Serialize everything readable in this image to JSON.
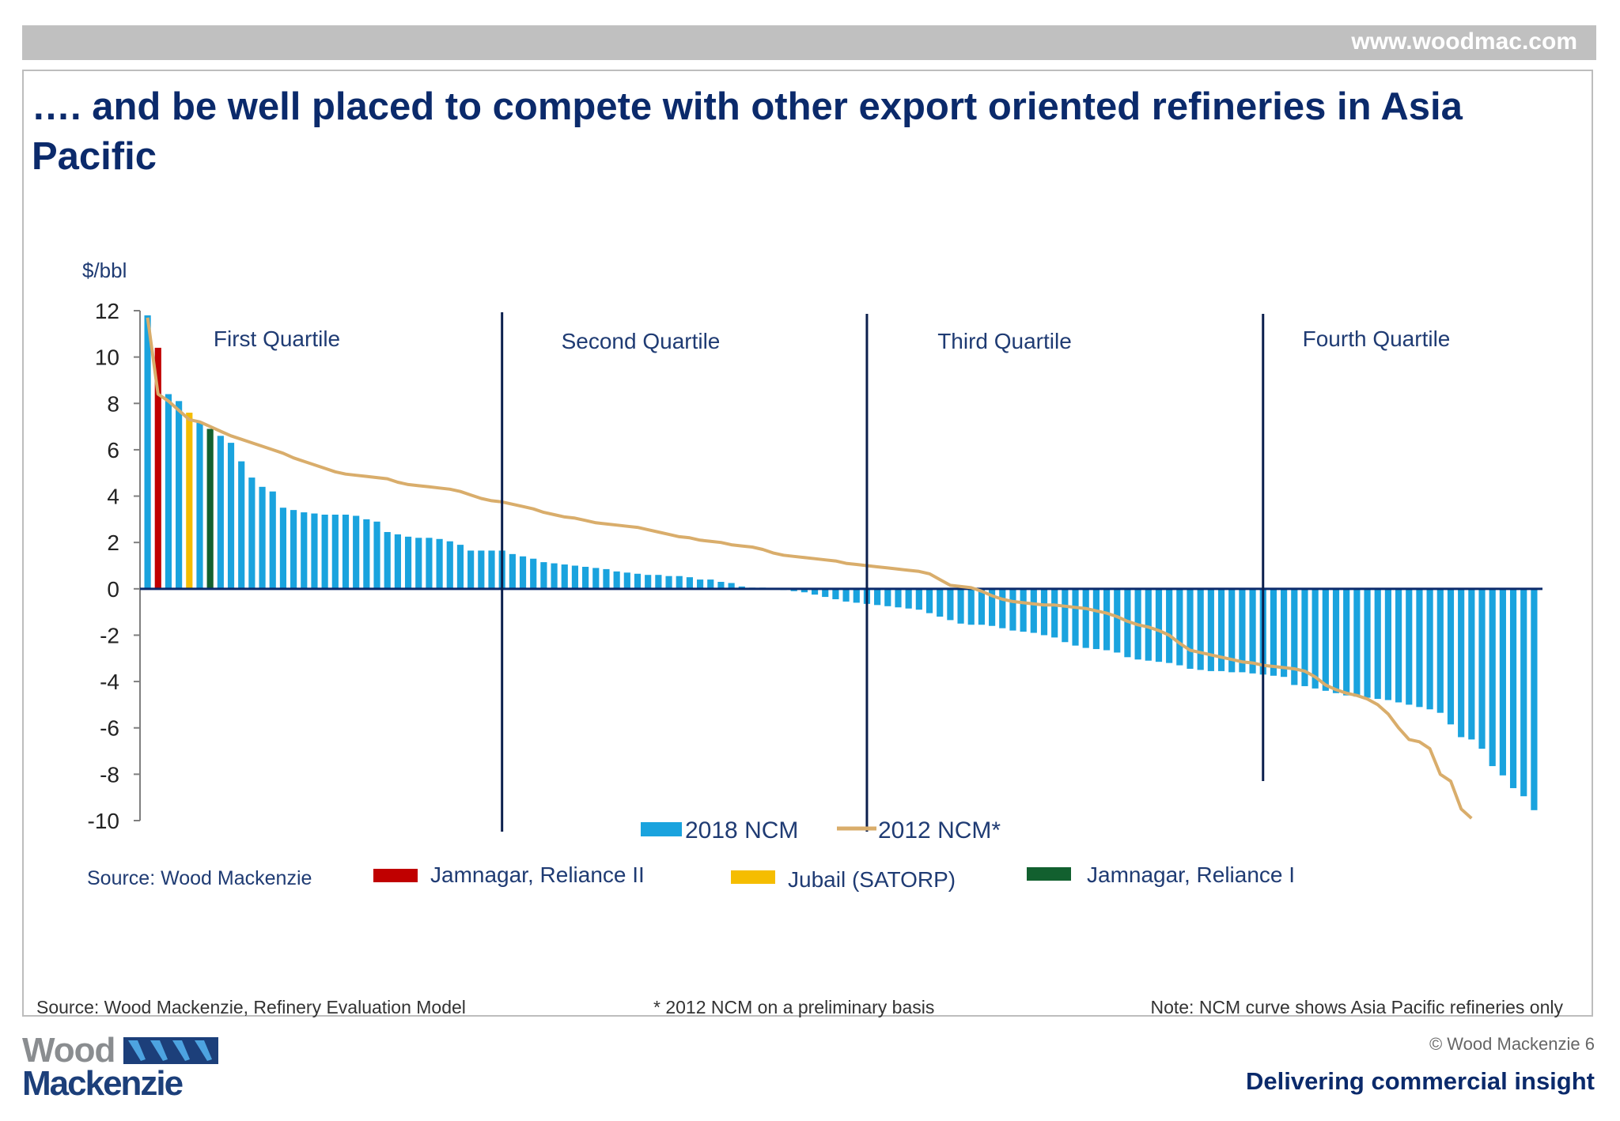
{
  "header": {
    "url": "www.woodmac.com"
  },
  "slide": {
    "title": "…. and be well placed to compete with other export oriented refineries in Asia Pacific"
  },
  "chart_data": {
    "type": "bar",
    "ylabel": "$/bbl",
    "ylim": [
      -10,
      12
    ],
    "yticks": [
      12,
      10,
      8,
      6,
      4,
      2,
      0,
      -2,
      -4,
      -6,
      -8,
      -10
    ],
    "grid": false,
    "quartile_labels": [
      "First Quartile",
      "Second Quartile",
      "Third Quartile",
      "Fourth Quartile"
    ],
    "quartile_dividers_after_bar": [
      34,
      69,
      107
    ],
    "colors": {
      "bar": "#1aa3de",
      "line": "#d9ad6b",
      "jamnagar_ii": "#c00000",
      "jubail": "#f5bd00",
      "jamnagar_i": "#12602f",
      "divider": "#0b1f4d",
      "text": "#1f3b73"
    },
    "series": [
      {
        "name": "2018 NCM",
        "type": "bar",
        "values": [
          11.8,
          10.4,
          8.4,
          8.1,
          7.6,
          7.2,
          6.9,
          6.6,
          6.3,
          5.5,
          4.8,
          4.4,
          4.2,
          3.5,
          3.4,
          3.3,
          3.25,
          3.2,
          3.2,
          3.2,
          3.15,
          3.0,
          2.9,
          2.45,
          2.35,
          2.25,
          2.2,
          2.2,
          2.15,
          2.05,
          1.9,
          1.65,
          1.65,
          1.65,
          1.65,
          1.5,
          1.4,
          1.3,
          1.15,
          1.1,
          1.05,
          1.0,
          0.95,
          0.9,
          0.85,
          0.75,
          0.7,
          0.65,
          0.6,
          0.6,
          0.55,
          0.55,
          0.5,
          0.4,
          0.4,
          0.3,
          0.25,
          0.1,
          0.05,
          0.05,
          0.0,
          -0.05,
          -0.1,
          -0.15,
          -0.25,
          -0.35,
          -0.45,
          -0.55,
          -0.6,
          -0.65,
          -0.7,
          -0.75,
          -0.8,
          -0.85,
          -0.9,
          -1.05,
          -1.2,
          -1.35,
          -1.5,
          -1.55,
          -1.55,
          -1.6,
          -1.7,
          -1.8,
          -1.85,
          -1.9,
          -2.0,
          -2.1,
          -2.3,
          -2.45,
          -2.55,
          -2.6,
          -2.65,
          -2.75,
          -2.95,
          -3.05,
          -3.1,
          -3.15,
          -3.2,
          -3.3,
          -3.45,
          -3.5,
          -3.55,
          -3.55,
          -3.6,
          -3.6,
          -3.65,
          -3.7,
          -3.75,
          -3.8,
          -4.15,
          -4.2,
          -4.3,
          -4.4,
          -4.5,
          -4.6,
          -4.65,
          -4.7,
          -4.75,
          -4.8,
          -4.9,
          -5.0,
          -5.1,
          -5.2,
          -5.35,
          -5.85,
          -6.4,
          -6.5,
          -6.9,
          -7.65,
          -8.05,
          -8.6,
          -8.95,
          -9.55
        ],
        "highlight_bars": {
          "1": "Jamnagar, Reliance II",
          "4": "Jubail (SATORP)",
          "6": "Jamnagar, Reliance I"
        }
      },
      {
        "name": "2012 NCM*",
        "type": "line",
        "values": [
          11.7,
          8.4,
          8.1,
          7.7,
          7.3,
          7.2,
          7.0,
          6.8,
          6.6,
          6.45,
          6.3,
          6.15,
          6.0,
          5.85,
          5.65,
          5.5,
          5.35,
          5.2,
          5.05,
          4.95,
          4.9,
          4.85,
          4.8,
          4.75,
          4.6,
          4.5,
          4.45,
          4.4,
          4.35,
          4.3,
          4.2,
          4.05,
          3.9,
          3.8,
          3.75,
          3.65,
          3.55,
          3.45,
          3.3,
          3.2,
          3.1,
          3.05,
          2.95,
          2.85,
          2.8,
          2.75,
          2.7,
          2.65,
          2.55,
          2.45,
          2.35,
          2.25,
          2.2,
          2.1,
          2.05,
          2.0,
          1.9,
          1.85,
          1.8,
          1.7,
          1.55,
          1.45,
          1.4,
          1.35,
          1.3,
          1.25,
          1.2,
          1.1,
          1.05,
          1.0,
          0.95,
          0.9,
          0.85,
          0.8,
          0.75,
          0.65,
          0.4,
          0.15,
          0.1,
          0.05,
          -0.1,
          -0.3,
          -0.45,
          -0.55,
          -0.6,
          -0.65,
          -0.7,
          -0.7,
          -0.75,
          -0.8,
          -0.85,
          -0.95,
          -1.05,
          -1.2,
          -1.4,
          -1.55,
          -1.65,
          -1.8,
          -2.0,
          -2.35,
          -2.65,
          -2.75,
          -2.85,
          -2.95,
          -3.05,
          -3.15,
          -3.2,
          -3.3,
          -3.35,
          -3.4,
          -3.45,
          -3.55,
          -3.8,
          -4.15,
          -4.35,
          -4.5,
          -4.6,
          -4.75,
          -5.0,
          -5.4,
          -6.0,
          -6.5,
          -6.6,
          -6.9,
          -8.0,
          -8.3,
          -9.5,
          -9.9
        ]
      }
    ],
    "legend": [
      {
        "label": "2018 NCM",
        "kind": "bar",
        "color": "#1aa3de"
      },
      {
        "label": "2012 NCM*",
        "kind": "line",
        "color": "#d9ad6b"
      },
      {
        "label": "Jamnagar, Reliance II",
        "kind": "bar",
        "color": "#c00000"
      },
      {
        "label": "Jubail (SATORP)",
        "kind": "bar",
        "color": "#f5bd00"
      },
      {
        "label": "Jamnagar, Reliance I",
        "kind": "bar",
        "color": "#12602f"
      }
    ],
    "source_note": "Source: Wood Mackenzie"
  },
  "footer": {
    "source": "Source: Wood Mackenzie, Refinery Evaluation Model",
    "asterisk_note": "* 2012 NCM on a preliminary basis",
    "note": "Note: NCM curve shows Asia Pacific refineries only",
    "copyright": "© Wood Mackenzie  6",
    "tagline": "Delivering commercial insight",
    "logo_line1": "Wood",
    "logo_line2": "Mackenzie"
  }
}
